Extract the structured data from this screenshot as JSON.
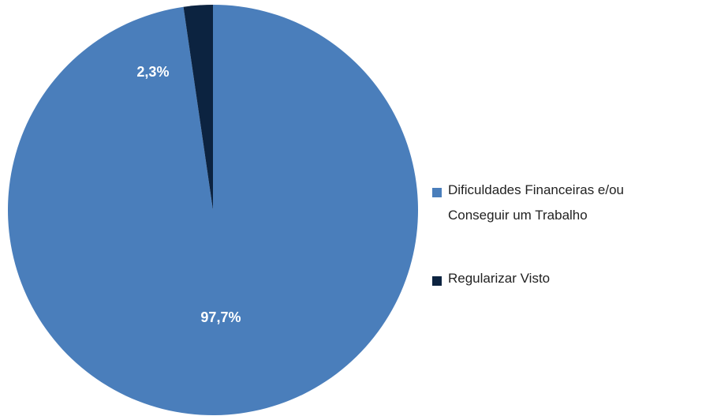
{
  "chart_data": {
    "type": "pie",
    "categories": [
      "Dificuldades Financeiras e/ou Conseguir um Trabalho",
      "Regularizar Visto"
    ],
    "values": [
      97.7,
      2.3
    ],
    "value_labels": [
      "97,7%",
      "2,3%"
    ],
    "colors": [
      "#4a7ebb",
      "#0c2340"
    ],
    "legend": "right"
  }
}
